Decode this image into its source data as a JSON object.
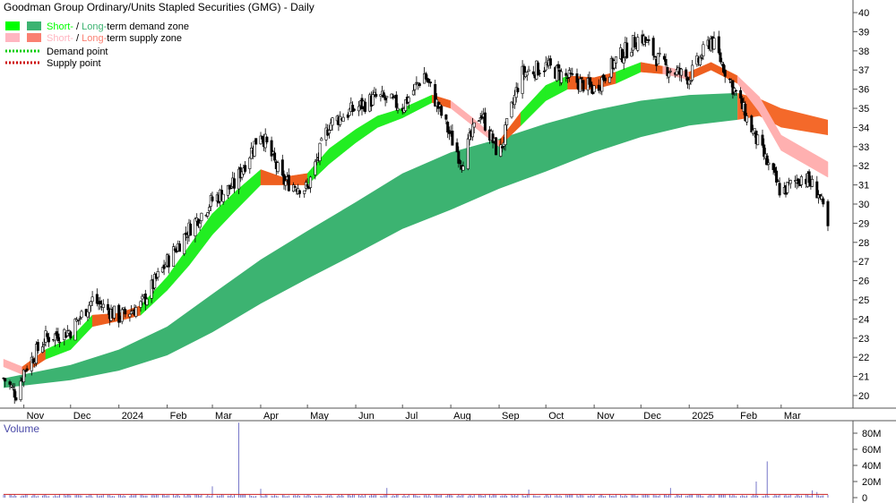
{
  "chart_data": [
    {
      "type": "candlestick",
      "title": "Goodman Group Ordinary/Units Stapled Securities (GMG) - Daily",
      "legend": [
        {
          "label_a": "Short-",
          "label_sep": " / ",
          "label_b": "Long-",
          "label_c": "term demand zone",
          "color_a": "#00ff00",
          "color_b": "#3cb371"
        },
        {
          "label_a": "Short-",
          "label_sep": " / ",
          "label_b": "Long-",
          "label_c": "term supply zone",
          "color_a": "#ffb6c1",
          "color_b": "#fa8072"
        },
        {
          "label": "Demand point",
          "color": "#00cc00",
          "style": "dotted"
        },
        {
          "label": "Supply point",
          "color": "#cc0000",
          "style": "dotted"
        }
      ],
      "y_ticks": [
        20,
        21,
        22,
        23,
        24,
        25,
        26,
        27,
        28,
        29,
        30,
        31,
        32,
        33,
        34,
        35,
        36,
        37,
        38,
        39,
        40
      ],
      "ylim": [
        19.3,
        40.4
      ],
      "x_labels": [
        "Nov",
        "Dec",
        "2024",
        "Feb",
        "Mar",
        "Apr",
        "May",
        "Jun",
        "Jul",
        "Aug",
        "Sep",
        "Oct",
        "Nov",
        "Dec",
        "2025",
        "Feb",
        "Mar"
      ],
      "x_dates": [
        "2023-10-19",
        "2023-11-01",
        "2023-12-01",
        "2024-01-01",
        "2024-02-01",
        "2024-03-01",
        "2024-04-01",
        "2024-05-01",
        "2024-06-01",
        "2024-07-01",
        "2024-08-01",
        "2024-09-01",
        "2024-10-01",
        "2024-11-01",
        "2024-12-01",
        "2025-01-01",
        "2025-02-01",
        "2025-03-01",
        "2025-03-31"
      ],
      "price_close": [
        {
          "date": "2023-10-19",
          "close": 20.9
        },
        {
          "date": "2023-10-27",
          "close": 20.1
        },
        {
          "date": "2023-11-01",
          "close": 21.3
        },
        {
          "date": "2023-11-15",
          "close": 23.0
        },
        {
          "date": "2023-12-01",
          "close": 23.4
        },
        {
          "date": "2023-12-15",
          "close": 25.0
        },
        {
          "date": "2024-01-01",
          "close": 24.1
        },
        {
          "date": "2024-01-15",
          "close": 24.7
        },
        {
          "date": "2024-02-01",
          "close": 27.0
        },
        {
          "date": "2024-02-15",
          "close": 28.7
        },
        {
          "date": "2024-03-01",
          "close": 30.2
        },
        {
          "date": "2024-03-15",
          "close": 31.0
        },
        {
          "date": "2024-04-01",
          "close": 33.8
        },
        {
          "date": "2024-04-15",
          "close": 31.2
        },
        {
          "date": "2024-05-01",
          "close": 30.8
        },
        {
          "date": "2024-05-15",
          "close": 34.2
        },
        {
          "date": "2024-06-01",
          "close": 35.0
        },
        {
          "date": "2024-06-15",
          "close": 35.6
        },
        {
          "date": "2024-07-01",
          "close": 35.1
        },
        {
          "date": "2024-07-15",
          "close": 36.8
        },
        {
          "date": "2024-08-01",
          "close": 33.5
        },
        {
          "date": "2024-08-08",
          "close": 32.2
        },
        {
          "date": "2024-08-20",
          "close": 34.8
        },
        {
          "date": "2024-09-01",
          "close": 32.5
        },
        {
          "date": "2024-09-15",
          "close": 36.8
        },
        {
          "date": "2024-10-01",
          "close": 37.2
        },
        {
          "date": "2024-10-15",
          "close": 36.6
        },
        {
          "date": "2024-11-01",
          "close": 36.0
        },
        {
          "date": "2024-11-15",
          "close": 37.5
        },
        {
          "date": "2024-12-01",
          "close": 38.8
        },
        {
          "date": "2024-12-15",
          "close": 37.2
        },
        {
          "date": "2025-01-01",
          "close": 36.6
        },
        {
          "date": "2025-01-15",
          "close": 38.6
        },
        {
          "date": "2025-02-01",
          "close": 35.6
        },
        {
          "date": "2025-02-15",
          "close": 33.0
        },
        {
          "date": "2025-03-01",
          "close": 30.6
        },
        {
          "date": "2025-03-15",
          "close": 31.5
        },
        {
          "date": "2025-03-25",
          "close": 30.6
        },
        {
          "date": "2025-03-31",
          "close": 28.7
        }
      ],
      "long_term_demand_zone": [
        {
          "date": "2023-10-19",
          "upper": 20.9,
          "lower": 20.4
        },
        {
          "date": "2023-12-01",
          "upper": 21.6,
          "lower": 20.8
        },
        {
          "date": "2024-01-01",
          "upper": 22.4,
          "lower": 21.3
        },
        {
          "date": "2024-02-01",
          "upper": 23.6,
          "lower": 22.1
        },
        {
          "date": "2024-03-01",
          "upper": 25.3,
          "lower": 23.3
        },
        {
          "date": "2024-04-01",
          "upper": 27.1,
          "lower": 24.8
        },
        {
          "date": "2024-05-01",
          "upper": 28.6,
          "lower": 26.1
        },
        {
          "date": "2024-06-01",
          "upper": 30.1,
          "lower": 27.4
        },
        {
          "date": "2024-07-01",
          "upper": 31.6,
          "lower": 28.7
        },
        {
          "date": "2024-08-01",
          "upper": 32.7,
          "lower": 29.7
        },
        {
          "date": "2024-09-01",
          "upper": 33.4,
          "lower": 30.8
        },
        {
          "date": "2024-10-01",
          "upper": 34.2,
          "lower": 31.7
        },
        {
          "date": "2024-11-01",
          "upper": 34.9,
          "lower": 32.7
        },
        {
          "date": "2024-12-01",
          "upper": 35.4,
          "lower": 33.5
        },
        {
          "date": "2025-01-01",
          "upper": 35.7,
          "lower": 34.1
        },
        {
          "date": "2025-02-01",
          "upper": 35.8,
          "lower": 34.4
        }
      ],
      "long_term_supply_zone": [
        {
          "date": "2025-02-01",
          "upper": 35.8,
          "lower": 34.4
        },
        {
          "date": "2025-02-15",
          "upper": 35.5,
          "lower": 34.6
        },
        {
          "date": "2025-03-01",
          "upper": 35.0,
          "lower": 34.0
        },
        {
          "date": "2025-03-31",
          "upper": 34.4,
          "lower": 33.6
        }
      ],
      "short_term_zone": [
        {
          "date": "2023-10-19",
          "upper": 21.9,
          "lower": 21.5,
          "zone": "supply"
        },
        {
          "date": "2023-10-31",
          "upper": 21.5,
          "lower": 21.1,
          "zone": "supply"
        },
        {
          "date": "2023-11-15",
          "upper": 22.4,
          "lower": 21.9,
          "zone": "demand"
        },
        {
          "date": "2023-12-01",
          "upper": 23.0,
          "lower": 22.4,
          "zone": "demand"
        },
        {
          "date": "2023-12-15",
          "upper": 24.2,
          "lower": 23.6,
          "zone": "demand"
        },
        {
          "date": "2024-01-01",
          "upper": 24.3,
          "lower": 23.9,
          "zone": "supply"
        },
        {
          "date": "2024-01-15",
          "upper": 24.7,
          "lower": 24.2,
          "zone": "demand"
        },
        {
          "date": "2024-02-01",
          "upper": 26.2,
          "lower": 25.5,
          "zone": "demand"
        },
        {
          "date": "2024-02-15",
          "upper": 27.8,
          "lower": 26.8,
          "zone": "demand"
        },
        {
          "date": "2024-03-01",
          "upper": 29.5,
          "lower": 28.4,
          "zone": "demand"
        },
        {
          "date": "2024-03-15",
          "upper": 30.6,
          "lower": 29.6,
          "zone": "demand"
        },
        {
          "date": "2024-04-01",
          "upper": 31.8,
          "lower": 31.0,
          "zone": "demand"
        },
        {
          "date": "2024-04-15",
          "upper": 31.4,
          "lower": 31.0,
          "zone": "supply"
        },
        {
          "date": "2024-05-01",
          "upper": 31.6,
          "lower": 31.0,
          "zone": "demand"
        },
        {
          "date": "2024-05-15",
          "upper": 32.9,
          "lower": 32.1,
          "zone": "demand"
        },
        {
          "date": "2024-06-01",
          "upper": 33.9,
          "lower": 33.2,
          "zone": "demand"
        },
        {
          "date": "2024-06-15",
          "upper": 34.6,
          "lower": 34.0,
          "zone": "demand"
        },
        {
          "date": "2024-07-01",
          "upper": 35.0,
          "lower": 34.5,
          "zone": "demand"
        },
        {
          "date": "2024-07-20",
          "upper": 35.7,
          "lower": 35.3,
          "zone": "demand"
        },
        {
          "date": "2024-08-01",
          "upper": 35.4,
          "lower": 35.0,
          "zone": "supply"
        },
        {
          "date": "2024-08-15",
          "upper": 34.5,
          "lower": 34.1,
          "zone": "supply"
        },
        {
          "date": "2024-09-01",
          "upper": 33.3,
          "lower": 33.0,
          "zone": "supply"
        },
        {
          "date": "2024-09-15",
          "upper": 34.8,
          "lower": 34.1,
          "zone": "demand"
        },
        {
          "date": "2024-10-01",
          "upper": 36.2,
          "lower": 35.4,
          "zone": "demand"
        },
        {
          "date": "2024-10-15",
          "upper": 36.7,
          "lower": 36.0,
          "zone": "demand"
        },
        {
          "date": "2024-11-01",
          "upper": 36.6,
          "lower": 36.0,
          "zone": "supply"
        },
        {
          "date": "2024-11-15",
          "upper": 36.9,
          "lower": 36.3,
          "zone": "demand"
        },
        {
          "date": "2024-12-01",
          "upper": 37.4,
          "lower": 36.9,
          "zone": "demand"
        },
        {
          "date": "2024-12-15",
          "upper": 37.2,
          "lower": 36.8,
          "zone": "supply"
        },
        {
          "date": "2025-01-01",
          "upper": 36.9,
          "lower": 36.5,
          "zone": "supply"
        },
        {
          "date": "2025-01-15",
          "upper": 37.4,
          "lower": 37.0,
          "zone": "demand"
        },
        {
          "date": "2025-02-01",
          "upper": 36.7,
          "lower": 36.3,
          "zone": "supply"
        },
        {
          "date": "2025-02-15",
          "upper": 35.6,
          "lower": 34.8,
          "zone": "supply"
        },
        {
          "date": "2025-03-01",
          "upper": 33.6,
          "lower": 32.8,
          "zone": "supply"
        },
        {
          "date": "2025-03-31",
          "upper": 32.2,
          "lower": 31.4,
          "zone": "supply"
        }
      ]
    },
    {
      "type": "bar",
      "title": "Volume",
      "y_ticks": [
        "0",
        "20M",
        "40M",
        "60M",
        "80M"
      ],
      "ylim": [
        0,
        90
      ],
      "unit": "M",
      "notable_bars": [
        {
          "date": "2024-03-18",
          "value": 93
        },
        {
          "date": "2025-02-20",
          "value": 45
        },
        {
          "date": "2025-02-13",
          "value": 20
        },
        {
          "date": "2024-03-01",
          "value": 14
        },
        {
          "date": "2024-06-21",
          "value": 12
        },
        {
          "date": "2024-12-20",
          "value": 12
        },
        {
          "date": "2024-09-20",
          "value": 10
        },
        {
          "date": "2024-04-01",
          "value": 11
        },
        {
          "date": "2025-03-21",
          "value": 9
        },
        {
          "date": "2025-03-24",
          "value": 7
        }
      ],
      "typical_value": 3,
      "moving_average": 4
    }
  ]
}
